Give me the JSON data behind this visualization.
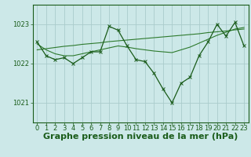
{
  "bg_color": "#cce8e8",
  "grid_color": "#aacccc",
  "line_color_dark": "#1a5c1a",
  "line_color_mid": "#2d7a2d",
  "xlim": [
    -0.5,
    23.5
  ],
  "ylim": [
    1020.5,
    1023.5
  ],
  "yticks": [
    1021,
    1022,
    1023
  ],
  "xticks": [
    0,
    1,
    2,
    3,
    4,
    5,
    6,
    7,
    8,
    9,
    10,
    11,
    12,
    13,
    14,
    15,
    16,
    17,
    18,
    19,
    20,
    21,
    22,
    23
  ],
  "x": [
    0,
    1,
    2,
    3,
    4,
    5,
    6,
    7,
    8,
    9,
    10,
    11,
    12,
    13,
    14,
    15,
    16,
    17,
    18,
    19,
    20,
    21,
    22,
    23
  ],
  "y_main": [
    1022.55,
    1022.2,
    1022.1,
    1022.15,
    1022.0,
    1022.15,
    1022.3,
    1022.3,
    1022.95,
    1022.85,
    1022.45,
    1022.1,
    1022.05,
    1021.75,
    1021.35,
    1021.0,
    1021.5,
    1021.65,
    1022.2,
    1022.55,
    1023.0,
    1022.7,
    1023.05,
    1022.45
  ],
  "y_smooth1": [
    1022.5,
    1022.35,
    1022.25,
    1022.2,
    1022.2,
    1022.25,
    1022.3,
    1022.35,
    1022.4,
    1022.45,
    1022.42,
    1022.38,
    1022.35,
    1022.32,
    1022.3,
    1022.28,
    1022.35,
    1022.42,
    1022.52,
    1022.62,
    1022.72,
    1022.8,
    1022.88,
    1022.92
  ],
  "y_smooth2": [
    1022.35,
    1022.38,
    1022.41,
    1022.44,
    1022.46,
    1022.49,
    1022.51,
    1022.53,
    1022.56,
    1022.58,
    1022.6,
    1022.62,
    1022.64,
    1022.66,
    1022.68,
    1022.7,
    1022.72,
    1022.74,
    1022.76,
    1022.79,
    1022.81,
    1022.83,
    1022.86,
    1022.88
  ],
  "xlabel": "Graphe pression niveau de la mer (hPa)",
  "xlabel_color": "#1a5c1a",
  "xlabel_fontsize": 8,
  "tick_fontsize": 6,
  "ytick_fontsize": 6,
  "figsize": [
    3.2,
    2.0
  ],
  "dpi": 100
}
